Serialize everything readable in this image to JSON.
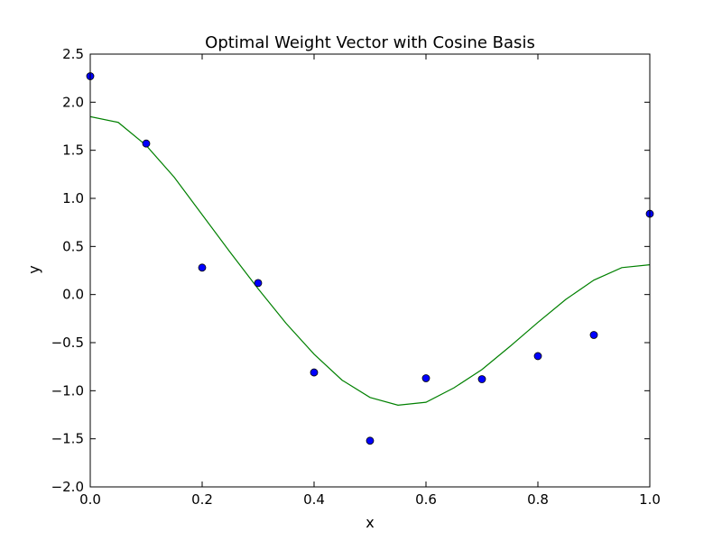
{
  "chart_data": {
    "type": "scatter",
    "title": "Optimal Weight Vector with Cosine Basis",
    "xlabel": "x",
    "ylabel": "y",
    "xlim": [
      0.0,
      1.0
    ],
    "ylim": [
      -2.0,
      2.5
    ],
    "x_ticks": [
      0.0,
      0.2,
      0.4,
      0.6,
      0.8,
      1.0
    ],
    "x_tick_labels": [
      "0.0",
      "0.2",
      "0.4",
      "0.6",
      "0.8",
      "1.0"
    ],
    "y_ticks": [
      -2.0,
      -1.5,
      -1.0,
      -0.5,
      0.0,
      0.5,
      1.0,
      1.5,
      2.0,
      2.5
    ],
    "y_tick_labels": [
      "−2.0",
      "−1.5",
      "−1.0",
      "−0.5",
      "0.0",
      "0.5",
      "1.0",
      "1.5",
      "2.0",
      "2.5"
    ],
    "grid": false,
    "legend": "none",
    "series": [
      {
        "kind": "points",
        "color": "#0000ff",
        "edge_color": "#000000",
        "x": [
          0.0,
          0.1,
          0.2,
          0.3,
          0.4,
          0.5,
          0.6,
          0.7,
          0.8,
          0.9,
          1.0
        ],
        "y": [
          2.27,
          1.57,
          0.28,
          0.12,
          -0.81,
          -1.52,
          -0.87,
          -0.88,
          -0.64,
          -0.42,
          0.84
        ]
      },
      {
        "kind": "curve",
        "color": "#008000",
        "x": [
          0.0,
          0.05,
          0.1,
          0.15,
          0.2,
          0.25,
          0.3,
          0.35,
          0.4,
          0.45,
          0.5,
          0.55,
          0.6,
          0.65,
          0.7,
          0.75,
          0.8,
          0.85,
          0.9,
          0.95,
          1.0
        ],
        "y": [
          1.85,
          1.79,
          1.55,
          1.22,
          0.83,
          0.44,
          0.06,
          -0.3,
          -0.62,
          -0.89,
          -1.07,
          -1.15,
          -1.12,
          -0.97,
          -0.78,
          -0.54,
          -0.29,
          -0.05,
          0.15,
          0.28,
          0.31
        ]
      }
    ]
  }
}
